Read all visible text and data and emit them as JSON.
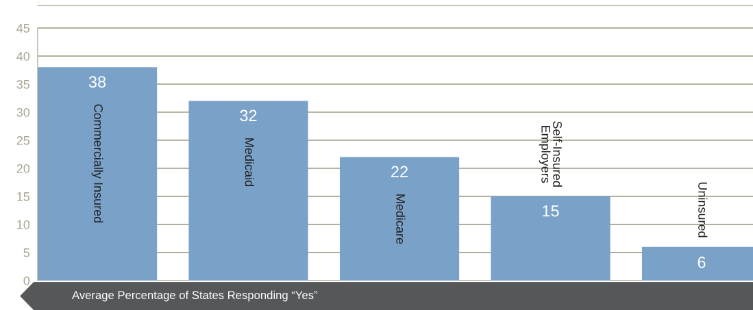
{
  "chart_data": {
    "type": "bar",
    "xlabel": "Average Percentage of States Responding “Yes”",
    "categories": [
      "Commercially Insured",
      "Medicaid",
      "Medicare",
      "Self-Insured\nEmployers",
      "Uninsured"
    ],
    "values": [
      38,
      32,
      22,
      15,
      6
    ],
    "color": "#7aa1c8",
    "data_labels": true,
    "ylim": [
      0,
      49
    ],
    "yticks": [
      0,
      5,
      10,
      15,
      20,
      25,
      30,
      35,
      40,
      45
    ],
    "grid": "y"
  }
}
